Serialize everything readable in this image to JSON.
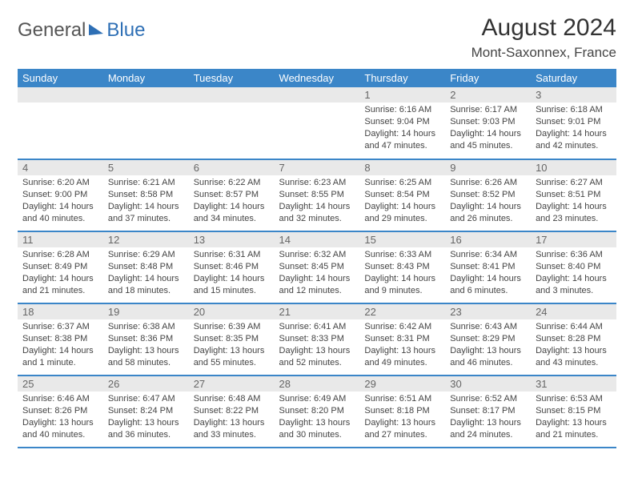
{
  "brand": {
    "part1": "General",
    "part2": "Blue"
  },
  "title": "August 2024",
  "subtitle": "Mont-Saxonnex, France",
  "colors": {
    "header_bg": "#3b86c8",
    "header_text": "#ffffff",
    "daynum_bg": "#e9e9e9",
    "row_divider": "#3b86c8",
    "text": "#444444"
  },
  "day_names": [
    "Sunday",
    "Monday",
    "Tuesday",
    "Wednesday",
    "Thursday",
    "Friday",
    "Saturday"
  ],
  "weeks": [
    [
      null,
      null,
      null,
      null,
      {
        "n": "1",
        "sr": "6:16 AM",
        "ss": "9:04 PM",
        "dl": "14 hours and 47 minutes."
      },
      {
        "n": "2",
        "sr": "6:17 AM",
        "ss": "9:03 PM",
        "dl": "14 hours and 45 minutes."
      },
      {
        "n": "3",
        "sr": "6:18 AM",
        "ss": "9:01 PM",
        "dl": "14 hours and 42 minutes."
      }
    ],
    [
      {
        "n": "4",
        "sr": "6:20 AM",
        "ss": "9:00 PM",
        "dl": "14 hours and 40 minutes."
      },
      {
        "n": "5",
        "sr": "6:21 AM",
        "ss": "8:58 PM",
        "dl": "14 hours and 37 minutes."
      },
      {
        "n": "6",
        "sr": "6:22 AM",
        "ss": "8:57 PM",
        "dl": "14 hours and 34 minutes."
      },
      {
        "n": "7",
        "sr": "6:23 AM",
        "ss": "8:55 PM",
        "dl": "14 hours and 32 minutes."
      },
      {
        "n": "8",
        "sr": "6:25 AM",
        "ss": "8:54 PM",
        "dl": "14 hours and 29 minutes."
      },
      {
        "n": "9",
        "sr": "6:26 AM",
        "ss": "8:52 PM",
        "dl": "14 hours and 26 minutes."
      },
      {
        "n": "10",
        "sr": "6:27 AM",
        "ss": "8:51 PM",
        "dl": "14 hours and 23 minutes."
      }
    ],
    [
      {
        "n": "11",
        "sr": "6:28 AM",
        "ss": "8:49 PM",
        "dl": "14 hours and 21 minutes."
      },
      {
        "n": "12",
        "sr": "6:29 AM",
        "ss": "8:48 PM",
        "dl": "14 hours and 18 minutes."
      },
      {
        "n": "13",
        "sr": "6:31 AM",
        "ss": "8:46 PM",
        "dl": "14 hours and 15 minutes."
      },
      {
        "n": "14",
        "sr": "6:32 AM",
        "ss": "8:45 PM",
        "dl": "14 hours and 12 minutes."
      },
      {
        "n": "15",
        "sr": "6:33 AM",
        "ss": "8:43 PM",
        "dl": "14 hours and 9 minutes."
      },
      {
        "n": "16",
        "sr": "6:34 AM",
        "ss": "8:41 PM",
        "dl": "14 hours and 6 minutes."
      },
      {
        "n": "17",
        "sr": "6:36 AM",
        "ss": "8:40 PM",
        "dl": "14 hours and 3 minutes."
      }
    ],
    [
      {
        "n": "18",
        "sr": "6:37 AM",
        "ss": "8:38 PM",
        "dl": "14 hours and 1 minute."
      },
      {
        "n": "19",
        "sr": "6:38 AM",
        "ss": "8:36 PM",
        "dl": "13 hours and 58 minutes."
      },
      {
        "n": "20",
        "sr": "6:39 AM",
        "ss": "8:35 PM",
        "dl": "13 hours and 55 minutes."
      },
      {
        "n": "21",
        "sr": "6:41 AM",
        "ss": "8:33 PM",
        "dl": "13 hours and 52 minutes."
      },
      {
        "n": "22",
        "sr": "6:42 AM",
        "ss": "8:31 PM",
        "dl": "13 hours and 49 minutes."
      },
      {
        "n": "23",
        "sr": "6:43 AM",
        "ss": "8:29 PM",
        "dl": "13 hours and 46 minutes."
      },
      {
        "n": "24",
        "sr": "6:44 AM",
        "ss": "8:28 PM",
        "dl": "13 hours and 43 minutes."
      }
    ],
    [
      {
        "n": "25",
        "sr": "6:46 AM",
        "ss": "8:26 PM",
        "dl": "13 hours and 40 minutes."
      },
      {
        "n": "26",
        "sr": "6:47 AM",
        "ss": "8:24 PM",
        "dl": "13 hours and 36 minutes."
      },
      {
        "n": "27",
        "sr": "6:48 AM",
        "ss": "8:22 PM",
        "dl": "13 hours and 33 minutes."
      },
      {
        "n": "28",
        "sr": "6:49 AM",
        "ss": "8:20 PM",
        "dl": "13 hours and 30 minutes."
      },
      {
        "n": "29",
        "sr": "6:51 AM",
        "ss": "8:18 PM",
        "dl": "13 hours and 27 minutes."
      },
      {
        "n": "30",
        "sr": "6:52 AM",
        "ss": "8:17 PM",
        "dl": "13 hours and 24 minutes."
      },
      {
        "n": "31",
        "sr": "6:53 AM",
        "ss": "8:15 PM",
        "dl": "13 hours and 21 minutes."
      }
    ]
  ],
  "labels": {
    "sunrise": "Sunrise:",
    "sunset": "Sunset:",
    "daylight": "Daylight:"
  }
}
